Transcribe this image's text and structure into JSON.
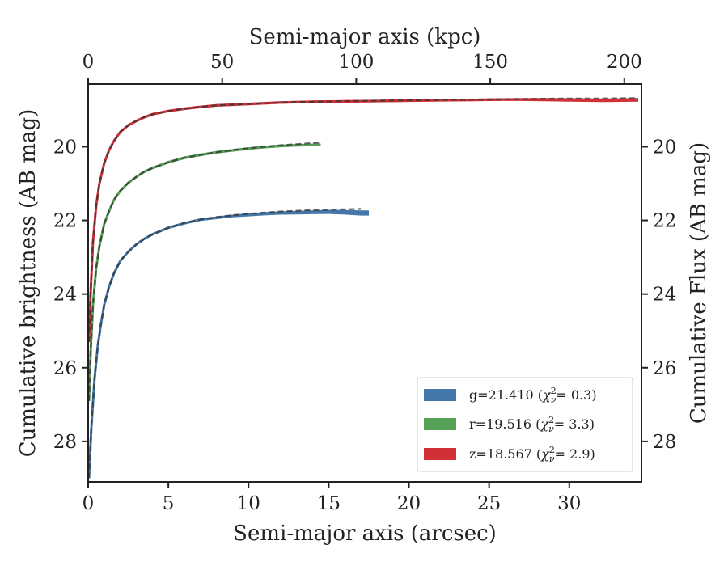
{
  "chart_data": {
    "type": "line",
    "xlabel": "Semi-major axis (arcsec)",
    "ylabel": "Cumulative brightness (AB mag)",
    "x2label": "Semi-major axis (kpc)",
    "y2label": "Cumulative Flux (AB mag)",
    "xlim": [
      0,
      34.5
    ],
    "ylim": [
      29.1,
      18.3
    ],
    "y_inverted": true,
    "x2lim": [
      0,
      206.4
    ],
    "xticks": [
      "0",
      "5",
      "10",
      "15",
      "20",
      "25",
      "30"
    ],
    "yticks": [
      "20",
      "22",
      "24",
      "26",
      "28"
    ],
    "x2ticks": [
      "0",
      "50",
      "100",
      "150",
      "200"
    ],
    "y2ticks": [
      "20",
      "22",
      "24",
      "26",
      "28"
    ],
    "legend_position": "lower right",
    "series": [
      {
        "name": "g=21.410 (χ²_ν = 0.3)",
        "legend_prefix": "g=21.410",
        "legend_value": "= 0.3",
        "color": "#4477aa",
        "x": [
          0.05,
          0.2,
          0.4,
          0.6,
          0.8,
          1.0,
          1.3,
          1.6,
          2.0,
          2.5,
          3.0,
          3.5,
          4.0,
          5.0,
          6.0,
          7.0,
          8.0,
          9.0,
          10.0,
          11.0,
          12.0,
          13.0,
          14.0,
          15.0,
          16.0,
          17.0,
          17.5
        ],
        "y": [
          29.0,
          27.6,
          26.3,
          25.4,
          24.8,
          24.3,
          23.8,
          23.45,
          23.1,
          22.85,
          22.65,
          22.5,
          22.38,
          22.2,
          22.08,
          21.98,
          21.93,
          21.88,
          21.85,
          21.82,
          21.8,
          21.79,
          21.78,
          21.77,
          21.78,
          21.8,
          21.8
        ],
        "width": [
          1,
          1,
          1,
          1,
          1,
          1,
          1,
          1,
          1,
          1,
          1,
          1,
          1,
          1,
          1,
          1,
          1,
          1,
          1.2,
          1.3,
          1.3,
          1.4,
          1.5,
          1.6,
          1.8,
          2.0,
          2.0
        ],
        "model_x": [
          0.05,
          0.2,
          0.4,
          0.6,
          0.8,
          1.0,
          1.3,
          1.6,
          2.0,
          2.5,
          3.0,
          3.5,
          4.0,
          5.0,
          6.0,
          7.0,
          8.0,
          9.0,
          10.0,
          11.0,
          12.0,
          13.0,
          14.0,
          15.0,
          16.0,
          17.0
        ],
        "model_y": [
          29.0,
          27.6,
          26.3,
          25.4,
          24.8,
          24.3,
          23.8,
          23.45,
          23.1,
          22.85,
          22.66,
          22.5,
          22.38,
          22.2,
          22.07,
          21.98,
          21.91,
          21.86,
          21.82,
          21.79,
          21.76,
          21.74,
          21.72,
          21.71,
          21.7,
          21.69
        ]
      },
      {
        "name": "r=19.516 (χ²_ν = 3.3)",
        "legend_prefix": "r=19.516",
        "legend_value": "= 3.3",
        "color": "#55a155",
        "x": [
          0.05,
          0.15,
          0.3,
          0.5,
          0.7,
          1.0,
          1.3,
          1.6,
          2.0,
          2.5,
          3.0,
          3.5,
          4.0,
          5.0,
          6.0,
          7.0,
          8.0,
          9.0,
          10.0,
          11.0,
          12.0,
          13.0,
          14.0,
          14.5
        ],
        "y": [
          26.9,
          25.6,
          24.3,
          23.3,
          22.7,
          22.1,
          21.75,
          21.45,
          21.2,
          20.98,
          20.82,
          20.68,
          20.58,
          20.42,
          20.3,
          20.22,
          20.15,
          20.1,
          20.05,
          20.01,
          19.98,
          19.96,
          19.95,
          19.95
        ],
        "width": [
          1,
          1,
          1,
          1,
          1,
          1,
          1,
          1,
          1,
          1,
          1,
          1,
          1,
          1,
          1,
          1,
          1,
          1,
          1,
          1,
          1,
          1,
          1,
          1
        ],
        "model_x": [
          0.05,
          0.15,
          0.3,
          0.5,
          0.7,
          1.0,
          1.3,
          1.6,
          2.0,
          2.5,
          3.0,
          3.5,
          4.0,
          5.0,
          6.0,
          7.0,
          8.0,
          9.0,
          10.0,
          11.0,
          12.0,
          13.0,
          14.0,
          14.5
        ],
        "model_y": [
          26.9,
          25.6,
          24.3,
          23.3,
          22.7,
          22.1,
          21.75,
          21.45,
          21.2,
          20.98,
          20.82,
          20.68,
          20.58,
          20.42,
          20.3,
          20.22,
          20.15,
          20.09,
          20.04,
          20.0,
          19.96,
          19.93,
          19.9,
          19.89
        ]
      },
      {
        "name": "z=18.567 (χ²_ν = 2.9)",
        "legend_prefix": "z=18.567",
        "legend_value": "= 2.9",
        "color": "#d03036",
        "x": [
          0.05,
          0.15,
          0.3,
          0.5,
          0.7,
          1.0,
          1.3,
          1.6,
          2.0,
          2.5,
          3.0,
          3.5,
          4.0,
          5.0,
          6.0,
          7.0,
          8.0,
          10.0,
          12.0,
          14.0,
          16.0,
          18.0,
          20.0,
          22.0,
          24.0,
          26.0,
          28.0,
          30.0,
          32.0,
          34.3
        ],
        "y": [
          25.3,
          24.0,
          22.6,
          21.6,
          21.0,
          20.45,
          20.1,
          19.85,
          19.6,
          19.42,
          19.3,
          19.2,
          19.12,
          19.03,
          18.97,
          18.92,
          18.88,
          18.84,
          18.8,
          18.78,
          18.77,
          18.76,
          18.75,
          18.74,
          18.73,
          18.72,
          18.72,
          18.73,
          18.74,
          18.73
        ],
        "width": [
          1,
          1,
          1,
          1,
          1,
          1,
          1,
          1,
          1,
          1,
          1,
          1,
          1,
          1,
          1,
          1,
          1,
          1,
          1,
          1,
          1,
          1,
          1,
          1,
          1,
          1,
          1.2,
          1.3,
          1.4,
          1.4
        ],
        "model_x": [
          0.05,
          0.15,
          0.3,
          0.5,
          0.7,
          1.0,
          1.3,
          1.6,
          2.0,
          2.5,
          3.0,
          3.5,
          4.0,
          5.0,
          6.0,
          7.0,
          8.0,
          10.0,
          12.0,
          14.0,
          16.0,
          18.0,
          20.0,
          22.0,
          24.0,
          26.0,
          28.0,
          30.0,
          32.0,
          34.3
        ],
        "model_y": [
          25.3,
          24.0,
          22.6,
          21.6,
          21.0,
          20.45,
          20.1,
          19.85,
          19.6,
          19.42,
          19.3,
          19.2,
          19.12,
          19.03,
          18.97,
          18.92,
          18.88,
          18.84,
          18.8,
          18.78,
          18.76,
          18.75,
          18.74,
          18.73,
          18.72,
          18.71,
          18.7,
          18.69,
          18.69,
          18.68
        ]
      }
    ],
    "model_line_style": "dashed",
    "model_line_color": "#333333"
  }
}
